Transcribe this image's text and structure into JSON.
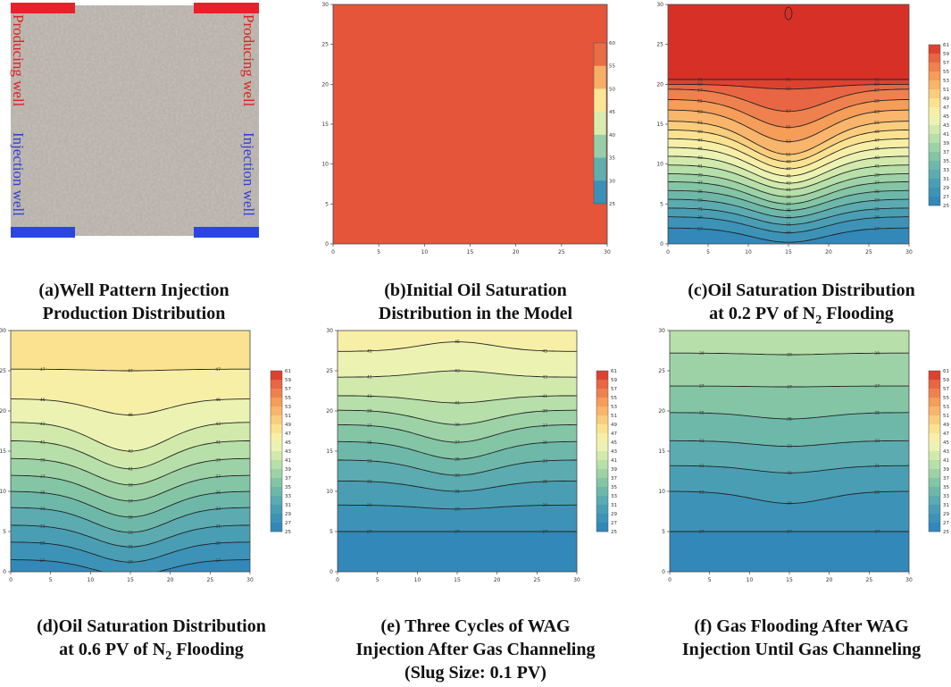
{
  "figure": {
    "panels": [
      {
        "id": "a",
        "caption_lines": [
          "(a)Well Pattern Injection",
          "Production Distribution"
        ],
        "labels": {
          "producing_left": "Producing well",
          "producing_right": "Producing well",
          "injection_left": "Injection well",
          "injection_right": "Injection well"
        }
      },
      {
        "id": "b",
        "caption_lines": [
          "(b)Initial Oil Saturation",
          "Distribution in the Model"
        ],
        "colorbar_ticks": [
          "60",
          "55",
          "50",
          "45",
          "40",
          "35",
          "30",
          "25"
        ]
      },
      {
        "id": "c",
        "caption_lines": [
          "(c)Oil Saturation Distribution",
          "at 0.2 PV of N",
          "2",
          " Flooding"
        ]
      },
      {
        "id": "d",
        "caption_lines": [
          "(d)Oil Saturation Distribution",
          "at 0.6 PV of N",
          "2",
          " Flooding"
        ]
      },
      {
        "id": "e",
        "caption_lines": [
          "(e) Three Cycles of WAG",
          "Injection After Gas Channeling",
          "(Slug Size: 0.1 PV)"
        ]
      },
      {
        "id": "f",
        "caption_lines": [
          "(f) Gas Flooding After WAG",
          "Injection Until Gas Channeling"
        ]
      }
    ],
    "fine_colorbar_ticks": [
      "61",
      "59",
      "57",
      "55",
      "53",
      "51",
      "49",
      "47",
      "45",
      "43",
      "41",
      "39",
      "37",
      "35",
      "33",
      "31",
      "29",
      "27",
      "25"
    ],
    "axis_ticks": [
      "0",
      "5",
      "10",
      "15",
      "20",
      "25",
      "30"
    ],
    "colors": {
      "producing_well": "#e8202a",
      "injection_well": "#2b46e0",
      "label_producing": "#e02020",
      "label_injection": "#3040d8"
    }
  },
  "chart_data": [
    {
      "type": "heatmap",
      "panel": "b",
      "title": "Initial Oil Saturation Distribution in the Model",
      "x_range": [
        0,
        30
      ],
      "y_range": [
        0,
        30
      ],
      "uniform_value": 61,
      "colorbar_range": [
        25,
        61
      ]
    },
    {
      "type": "heatmap",
      "panel": "c",
      "title": "Oil Saturation Distribution at 0.2 PV of N2 Flooding",
      "x_range": [
        0,
        30
      ],
      "y_range": [
        0,
        30
      ],
      "contour_levels": [
        27,
        29,
        31,
        33,
        35,
        37,
        39,
        41,
        43,
        45,
        47,
        49,
        51,
        53,
        55,
        57,
        59,
        61
      ],
      "edge_levels_y": {
        "27": 2,
        "29": 3.4,
        "31": 4.5,
        "33": 5.6,
        "35": 6.7,
        "37": 7.8,
        "39": 8.8,
        "41": 9.9,
        "43": 11,
        "45": 12.1,
        "47": 13.2,
        "49": 14.3,
        "51": 15.4,
        "53": 16.8,
        "55": 18.1,
        "57": 19.4,
        "59": 20,
        "61": 20.6
      },
      "center_levels_y": {
        "27": 0.2,
        "29": 1.4,
        "31": 2.4,
        "33": 3.3,
        "35": 4.2,
        "37": 5,
        "39": 5.9,
        "41": 6.8,
        "43": 7.6,
        "45": 8.5,
        "47": 9.4,
        "49": 10.3,
        "51": 11.2,
        "53": 12.8,
        "55": 14.6,
        "57": 16.6,
        "59": 19.4,
        "61": 20.6
      }
    },
    {
      "type": "heatmap",
      "panel": "d",
      "title": "Oil Saturation Distribution at 0.6 PV of N2 Flooding",
      "x_range": [
        0,
        30
      ],
      "y_range": [
        0,
        30
      ],
      "contour_levels": [
        27,
        29,
        31,
        33,
        35,
        37,
        39,
        41,
        43,
        45,
        47,
        49
      ],
      "edge_levels_y": {
        "27": 1.5,
        "29": 3.7,
        "31": 5.8,
        "33": 8,
        "35": 10,
        "37": 12,
        "39": 14.1,
        "41": 16.3,
        "43": 18.6,
        "45": 21.5,
        "47": 25.2,
        "49": 30.5
      },
      "center_levels_y": {
        "27": -0.5,
        "29": 1.2,
        "31": 3.1,
        "33": 4.9,
        "35": 6.8,
        "37": 8.8,
        "39": 10.8,
        "41": 12.8,
        "43": 15,
        "45": 19.5,
        "47": 25,
        "49": 30.5
      }
    },
    {
      "type": "heatmap",
      "panel": "e",
      "title": "Three Cycles of WAG Injection After Gas Channeling (Slug Size: 0.1 PV)",
      "x_range": [
        0,
        30
      ],
      "y_range": [
        0,
        30
      ],
      "contour_levels": [
        27,
        29,
        31,
        33,
        35,
        37,
        39,
        41,
        43,
        45,
        47
      ],
      "edge_levels_y": {
        "27": 5,
        "29": 8.3,
        "31": 11.3,
        "33": 13.9,
        "35": 16.2,
        "37": 18.3,
        "39": 20.1,
        "41": 21.9,
        "43": 24.2,
        "45": 27.4,
        "47": 31
      },
      "center_levels_y": {
        "27": 5,
        "29": 7.8,
        "31": 10,
        "33": 12,
        "35": 14,
        "37": 16.1,
        "39": 18.3,
        "41": 21,
        "43": 25,
        "45": 28.6,
        "47": 31
      }
    },
    {
      "type": "heatmap",
      "panel": "f",
      "title": "Gas Flooding After WAG Injection Until Gas Channeling",
      "x_range": [
        0,
        30
      ],
      "y_range": [
        0,
        30
      ],
      "contour_levels": [
        27,
        29,
        31,
        33,
        35,
        37,
        39,
        41
      ],
      "edge_levels_y": {
        "27": 5,
        "29": 10,
        "31": 13.2,
        "33": 16.3,
        "35": 19.8,
        "37": 23.1,
        "39": 27.2,
        "41": 31
      },
      "center_levels_y": {
        "27": 5,
        "29": 8.5,
        "31": 12.3,
        "33": 15.6,
        "35": 19,
        "37": 23,
        "39": 27,
        "41": 31
      }
    }
  ]
}
